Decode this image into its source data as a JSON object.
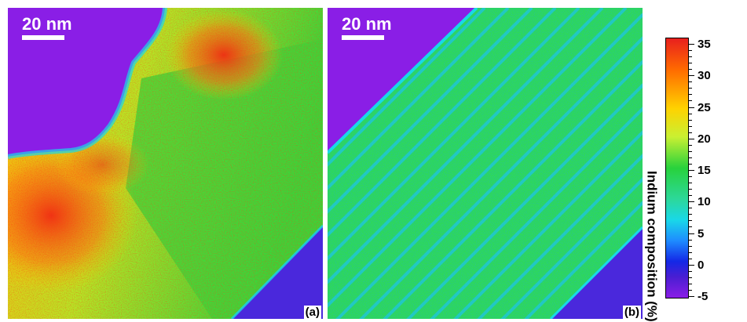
{
  "panels": [
    {
      "id": "a",
      "label": "(a)",
      "scale_bar": "20 nm"
    },
    {
      "id": "b",
      "label": "(b)",
      "scale_bar": "20 nm"
    }
  ],
  "colorbar": {
    "title": "Indium composition (%)",
    "ticks": [
      "35",
      "30",
      "25",
      "20",
      "15",
      "10",
      "5",
      "0",
      "-5"
    ],
    "range": [
      -5,
      35
    ],
    "colors": [
      "#e8201e",
      "#ff6a00",
      "#ffd200",
      "#c9f032",
      "#28d23c",
      "#2cd89a",
      "#19d8e8",
      "#1e8cff",
      "#1428e6",
      "#8a1ee6"
    ]
  }
}
